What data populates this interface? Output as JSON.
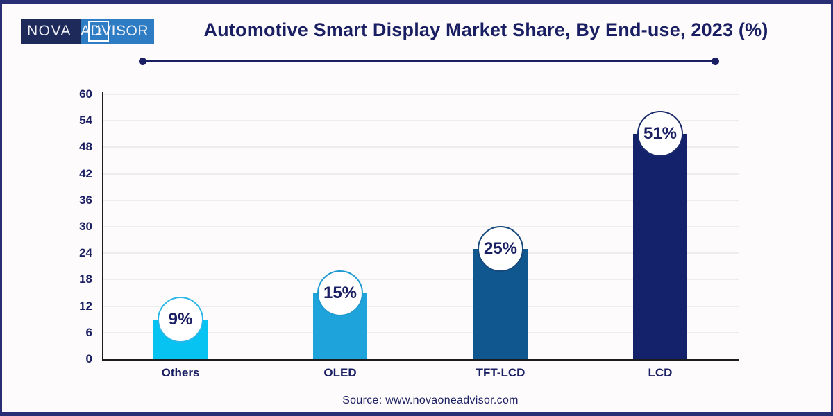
{
  "page": {
    "background": "#fdfbfb",
    "frame_color": "#292e75",
    "text_color": "#1a1f63"
  },
  "logo": {
    "left_text": "NOVA",
    "box_text": "1",
    "right_text": "ADVISOR",
    "left_bg": "#1e2a5a",
    "right_bg": "#2e7cc3",
    "text_color": "#ffffff"
  },
  "header": {
    "title": "Automotive Smart Display Market Share, By End-use, 2023 (%)"
  },
  "chart_data": {
    "type": "bar",
    "title": "Automotive Smart Display Market Share, By End-use, 2023 (%)",
    "categories": [
      "Others",
      "OLED",
      "TFT-LCD",
      "LCD"
    ],
    "values": [
      9,
      15,
      25,
      51
    ],
    "value_labels": [
      "9%",
      "15%",
      "25%",
      "51%"
    ],
    "bar_colors": [
      "#06c3f2",
      "#1ea4da",
      "#10568f",
      "#14216b"
    ],
    "badge_border_colors": [
      "#2cb7e8",
      "#1f99d1",
      "#17497d",
      "#1b2a6b"
    ],
    "badge_fill": "#ffffff",
    "label_color": "#1a1f63",
    "xlabel": "",
    "ylabel": "",
    "ylim": [
      0,
      60
    ],
    "yticks": [
      0,
      6,
      12,
      18,
      24,
      30,
      36,
      42,
      48,
      54,
      60
    ],
    "grid": true,
    "legend": false
  },
  "footer": {
    "source": "Source: www.novaoneadvisor.com"
  }
}
